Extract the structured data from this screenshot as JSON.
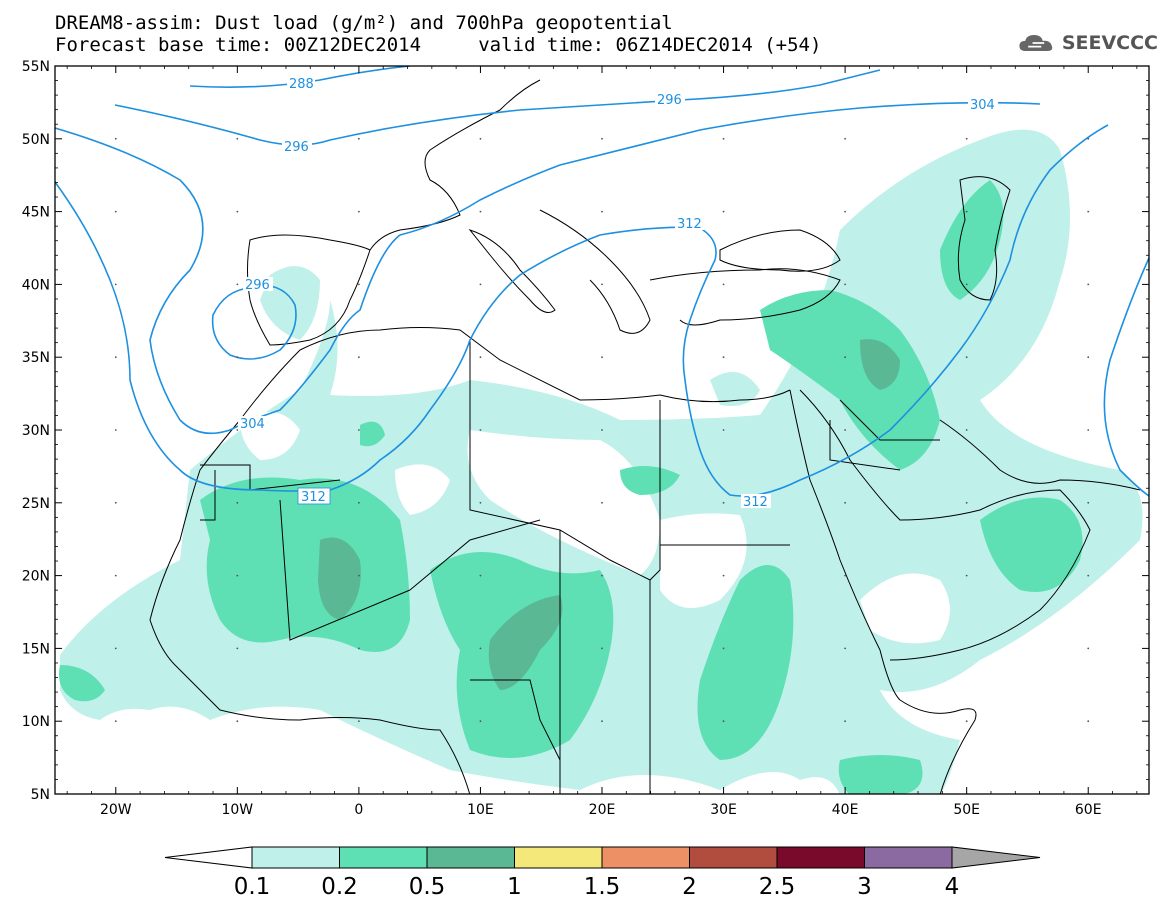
{
  "title_line1": "DREAM8-assim: Dust load (g/m²) and 700hPa geopotential",
  "title_line2": "Forecast base time: 00Z12DEC2014     valid time: 06Z14DEC2014 (+54)",
  "logo_text": "SEEVCCC",
  "logo_icon": "cloud-icon",
  "map": {
    "lon_range": [
      -25,
      65
    ],
    "lat_range": [
      5,
      55
    ],
    "lat_labels": [
      "55N",
      "50N",
      "45N",
      "40N",
      "35N",
      "30N",
      "25N",
      "20N",
      "15N",
      "10N",
      "5N"
    ],
    "lon_labels": [
      "20W",
      "10W",
      "0",
      "10E",
      "20E",
      "30E",
      "40E",
      "50E",
      "60E"
    ],
    "contour_labels": [
      "288",
      "296",
      "296",
      "304",
      "312",
      "296",
      "304",
      "312",
      "312"
    ]
  },
  "colorbar": {
    "levels": [
      "0.1",
      "0.2",
      "0.5",
      "1",
      "1.5",
      "2",
      "2.5",
      "3",
      "4"
    ],
    "colors": [
      "#bff0ea",
      "#5ee0b4",
      "#5ab894",
      "#f5e87a",
      "#ee9066",
      "#b04d3e",
      "#7a0a2c",
      "#8a6aa0"
    ],
    "under_color": "#ffffff",
    "over_color": "#a6a6a6"
  }
}
